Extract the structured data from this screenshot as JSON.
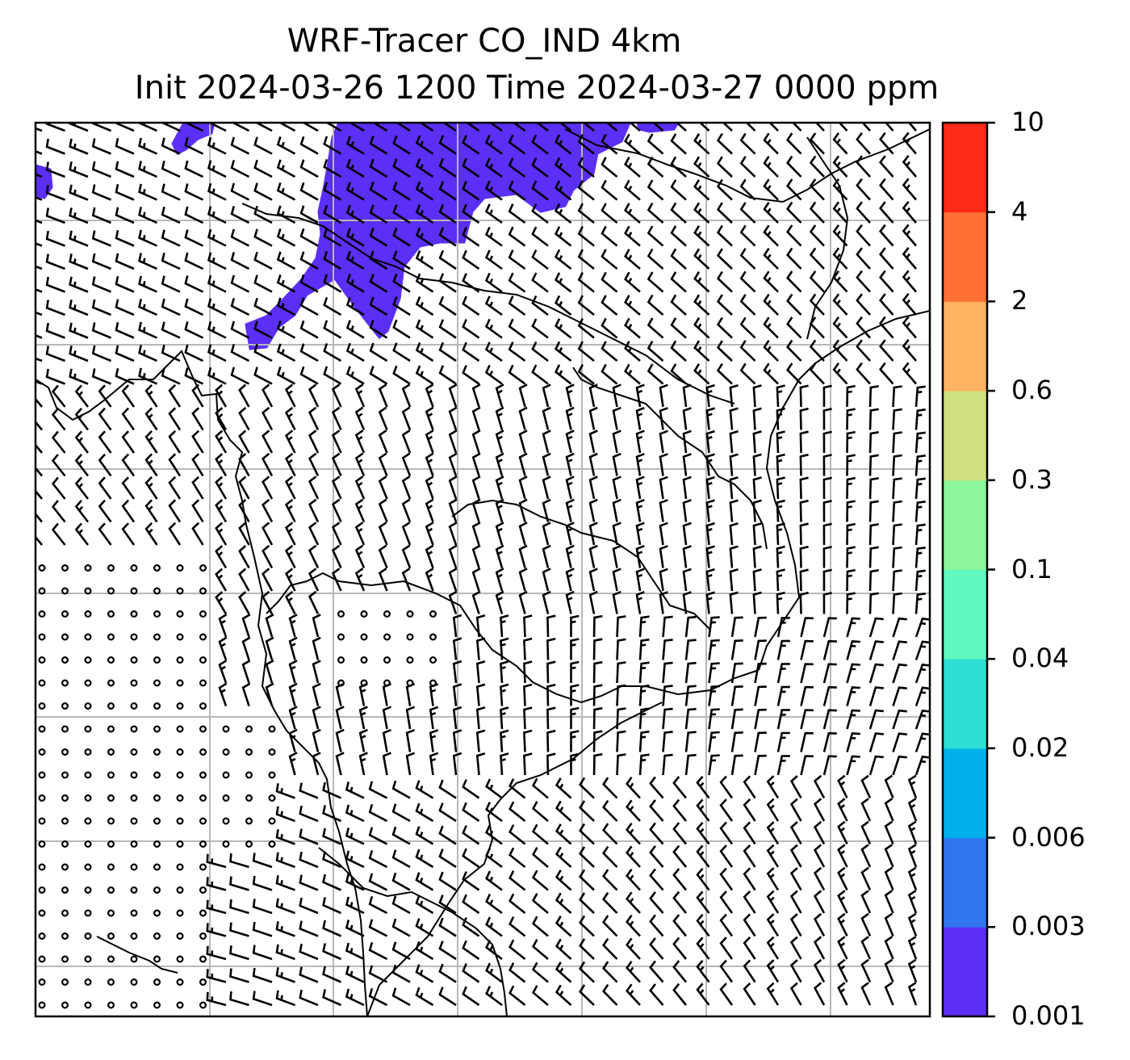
{
  "title": {
    "line1": "WRF-Tracer CO_IND 4km",
    "line2": "Init 2024-03-26 1200 Time 2024-03-27 0000 ppm"
  },
  "colorbar": {
    "levels": [
      "0.001",
      "0.003",
      "0.006",
      "0.02",
      "0.04",
      "0.1",
      "0.3",
      "0.6",
      "2",
      "4",
      "10"
    ],
    "colors": [
      "#5b2ff5",
      "#3175ee",
      "#00b0ea",
      "#2ddfd4",
      "#60f7c0",
      "#8df59a",
      "#cfe07f",
      "#ffb363",
      "#ff7036",
      "#ff2a17"
    ]
  },
  "map": {
    "tracer_color": "#5b2ff5",
    "grid_color": "#b8b8b8",
    "coast_color": "#000000",
    "grid_lines": "on",
    "symbol_legend": "wind barbs; circles mark calm winds"
  }
}
